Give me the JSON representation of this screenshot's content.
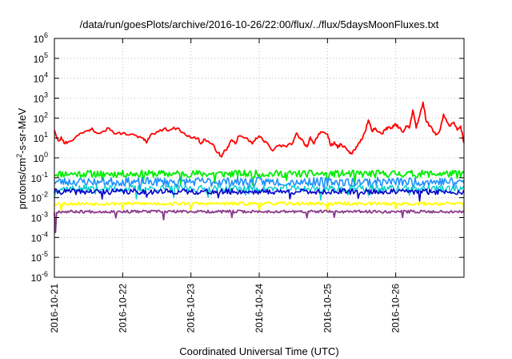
{
  "chart_data": {
    "type": "line",
    "title": "/data/run/goesPlots/archive/2016-10-26/22:00/flux/../flux/5daysMoonFluxes.txt",
    "xlabel": "Coordinated Universal Time (UTC)",
    "ylabel_parts": [
      "protons/cm",
      "2",
      "-s-sr-MeV"
    ],
    "y_scale": "log",
    "ylim_exp": [
      -6,
      6
    ],
    "y_ticks": [
      {
        "base": "10",
        "exp": "6"
      },
      {
        "base": "10",
        "exp": "5"
      },
      {
        "base": "10",
        "exp": "4"
      },
      {
        "base": "10",
        "exp": "3"
      },
      {
        "base": "10",
        "exp": "2"
      },
      {
        "base": "10",
        "exp": "1"
      },
      {
        "base": "10",
        "exp": "0"
      },
      {
        "base": "10",
        "exp": "-1"
      },
      {
        "base": "10",
        "exp": "-2"
      },
      {
        "base": "10",
        "exp": "-3"
      },
      {
        "base": "10",
        "exp": "-4"
      },
      {
        "base": "10",
        "exp": "-5"
      },
      {
        "base": "10",
        "exp": "-6"
      }
    ],
    "x_ticks": [
      "2016-10-21",
      "2016-10-22",
      "2016-10-23",
      "2016-10-24",
      "2016-10-25",
      "2016-10-26"
    ],
    "x_range_days": [
      0,
      6
    ],
    "grid": true,
    "series": [
      {
        "color": "#ff0000",
        "width": 1.8,
        "jitter": 0.08,
        "points": [
          [
            0.0,
            1.4
          ],
          [
            0.06,
            0.85
          ],
          [
            0.1,
            1.05
          ],
          [
            0.14,
            0.75
          ],
          [
            0.2,
            0.8
          ],
          [
            0.3,
            1.0
          ],
          [
            0.4,
            1.25
          ],
          [
            0.5,
            1.38
          ],
          [
            0.55,
            1.5
          ],
          [
            0.6,
            1.3
          ],
          [
            0.7,
            1.32
          ],
          [
            0.8,
            1.5
          ],
          [
            0.9,
            1.2
          ],
          [
            1.0,
            1.25
          ],
          [
            1.1,
            1.15
          ],
          [
            1.2,
            1.12
          ],
          [
            1.3,
            1.0
          ],
          [
            1.35,
            0.75
          ],
          [
            1.4,
            1.1
          ],
          [
            1.5,
            1.32
          ],
          [
            1.6,
            1.45
          ],
          [
            1.7,
            1.42
          ],
          [
            1.8,
            1.5
          ],
          [
            1.9,
            1.25
          ],
          [
            2.0,
            1.0
          ],
          [
            2.1,
            1.0
          ],
          [
            2.15,
            0.7
          ],
          [
            2.2,
            0.95
          ],
          [
            2.3,
            0.7
          ],
          [
            2.35,
            0.5
          ],
          [
            2.4,
            0.25
          ],
          [
            2.45,
            0.05
          ],
          [
            2.5,
            0.4
          ],
          [
            2.55,
            0.55
          ],
          [
            2.6,
            0.9
          ],
          [
            2.65,
            0.7
          ],
          [
            2.7,
            1.1
          ],
          [
            2.8,
            1.0
          ],
          [
            2.9,
            0.7
          ],
          [
            2.95,
            1.0
          ],
          [
            3.0,
            1.1
          ],
          [
            3.05,
            0.9
          ],
          [
            3.1,
            0.8
          ],
          [
            3.2,
            0.35
          ],
          [
            3.3,
            0.65
          ],
          [
            3.4,
            0.55
          ],
          [
            3.5,
            0.8
          ],
          [
            3.55,
            1.25
          ],
          [
            3.6,
            1.0
          ],
          [
            3.65,
            0.8
          ],
          [
            3.7,
            0.55
          ],
          [
            3.75,
            1.05
          ],
          [
            3.8,
            0.7
          ],
          [
            3.85,
            1.0
          ],
          [
            3.9,
            1.3
          ],
          [
            4.0,
            1.2
          ],
          [
            4.05,
            0.6
          ],
          [
            4.1,
            0.8
          ],
          [
            4.15,
            0.5
          ],
          [
            4.2,
            0.7
          ],
          [
            4.3,
            0.35
          ],
          [
            4.35,
            0.2
          ],
          [
            4.4,
            0.4
          ],
          [
            4.45,
            0.7
          ],
          [
            4.5,
            0.9
          ],
          [
            4.55,
            1.3
          ],
          [
            4.6,
            1.9
          ],
          [
            4.65,
            1.35
          ],
          [
            4.7,
            1.5
          ],
          [
            4.75,
            1.3
          ],
          [
            4.8,
            1.2
          ],
          [
            4.85,
            1.4
          ],
          [
            4.9,
            1.55
          ],
          [
            4.95,
            1.5
          ],
          [
            5.0,
            1.7
          ],
          [
            5.05,
            1.5
          ],
          [
            5.1,
            1.3
          ],
          [
            5.15,
            1.6
          ],
          [
            5.2,
            1.5
          ],
          [
            5.25,
            2.4
          ],
          [
            5.3,
            1.5
          ],
          [
            5.35,
            2.1
          ],
          [
            5.4,
            2.8
          ],
          [
            5.45,
            1.8
          ],
          [
            5.5,
            1.6
          ],
          [
            5.55,
            1.3
          ],
          [
            5.6,
            1.2
          ],
          [
            5.65,
            1.4
          ],
          [
            5.7,
            2.2
          ],
          [
            5.75,
            1.8
          ],
          [
            5.8,
            1.6
          ],
          [
            5.85,
            1.8
          ],
          [
            5.9,
            1.4
          ],
          [
            5.95,
            1.6
          ],
          [
            6.0,
            0.75
          ]
        ]
      },
      {
        "color": "#00ee00",
        "width": 1.8,
        "base": -0.8,
        "jitter": 0.18,
        "dips": [
          0.7,
          1.3,
          1.85,
          2.35,
          2.9,
          3.4,
          4.0,
          4.4,
          4.7,
          5.3,
          5.9
        ],
        "seed": 11
      },
      {
        "color": "#1e90ff",
        "width": 1.6,
        "base": -1.2,
        "jitter": 0.22,
        "dips": [
          0.65,
          1.25,
          1.8,
          2.3,
          2.85,
          3.35,
          3.95,
          4.35,
          4.65,
          5.25,
          5.85
        ],
        "seed": 23
      },
      {
        "color": "#00cdcd",
        "width": 1.4,
        "base": -1.55,
        "jitter": 0.18,
        "dips": [
          0.0,
          0.6,
          1.2,
          1.75,
          2.25,
          2.8,
          3.3,
          3.9,
          4.3,
          4.6,
          5.2,
          5.8
        ],
        "seed": 37
      },
      {
        "color": "#0000cd",
        "width": 1.6,
        "base": -1.7,
        "jitter": 0.14,
        "dips": [
          0.7,
          1.35,
          2.4,
          3.45,
          4.45,
          5.35
        ],
        "seed": 41
      },
      {
        "color": "#ffff00",
        "width": 1.8,
        "base": -2.3,
        "jitter": 0.08,
        "dips": [
          0.1,
          1.0,
          2.0,
          3.0,
          4.0,
          5.0,
          6.0
        ],
        "seed": 53
      },
      {
        "color": "#8b3a8b",
        "width": 1.8,
        "base": -2.7,
        "jitter": 0.07,
        "dips": [
          0.02,
          0.9,
          1.6,
          2.6,
          3.7,
          4.1,
          5.1
        ],
        "seed": 67,
        "spike": {
          "x": 0.02,
          "y": -3.75
        }
      }
    ]
  }
}
